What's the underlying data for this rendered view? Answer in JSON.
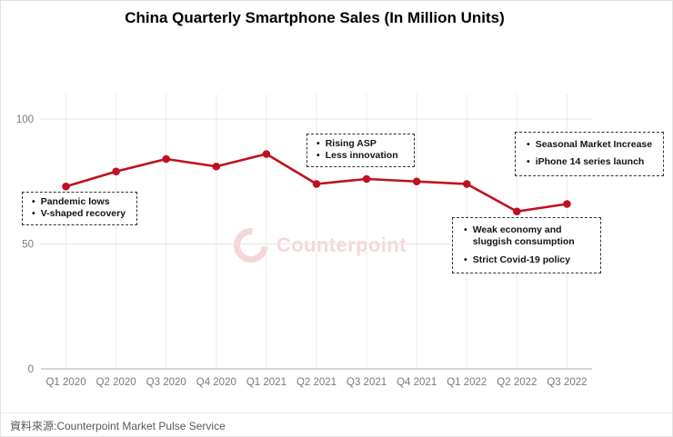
{
  "title": "China Quarterly Smartphone Sales (In Million Units)",
  "source": "資料來源:Counterpoint Market Pulse Service",
  "watermark": {
    "brand": "Counterpoint"
  },
  "colors": {
    "line": "#c0101e",
    "grid_vertical": "#ececec",
    "grid_horizontal": "#e6e6e6",
    "axis": "#bdbdbd",
    "tick_label": "#7a7a7a",
    "annotation_border": "#333333",
    "title_text": "#000000",
    "source_text": "#595959",
    "watermark_red": "#c0101e"
  },
  "annotations": [
    {
      "id": "pandemic",
      "items": [
        "Pandemic lows",
        "V-shaped recovery"
      ]
    },
    {
      "id": "rising",
      "items": [
        "Rising ASP",
        "Less innovation"
      ]
    },
    {
      "id": "seasonal",
      "items": [
        "Seasonal Market Increase",
        "iPhone 14 series launch"
      ]
    },
    {
      "id": "weak",
      "items": [
        "Weak economy and sluggish consumption",
        "Strict Covid-19 policy"
      ]
    }
  ],
  "chart_data": {
    "type": "line",
    "title": "China Quarterly Smartphone Sales (In Million Units)",
    "categories": [
      "Q1 2020",
      "Q2 2020",
      "Q3 2020",
      "Q4 2020",
      "Q1 2021",
      "Q2 2021",
      "Q3 2021",
      "Q4 2021",
      "Q1 2022",
      "Q2 2022",
      "Q3 2022"
    ],
    "values": [
      73,
      79,
      84,
      81,
      86,
      74,
      76,
      75,
      74,
      63,
      66
    ],
    "xlabel": "",
    "ylabel": "",
    "ylim": [
      0,
      110
    ],
    "yticks": [
      0,
      50,
      100
    ],
    "grid": true,
    "legend": "none",
    "marker": "circle",
    "line_color": "#c0101e"
  }
}
